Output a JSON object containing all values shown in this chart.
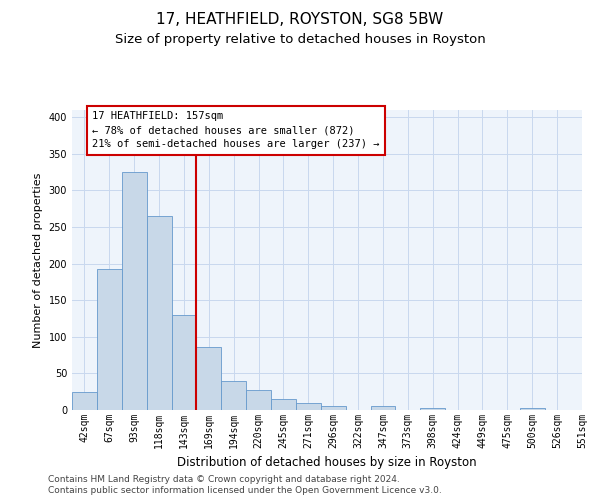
{
  "title1": "17, HEATHFIELD, ROYSTON, SG8 5BW",
  "title2": "Size of property relative to detached houses in Royston",
  "xlabel": "Distribution of detached houses by size in Royston",
  "ylabel": "Number of detached properties",
  "bar_values": [
    25,
    193,
    325,
    265,
    130,
    86,
    40,
    27,
    15,
    9,
    5,
    0,
    5,
    0,
    3,
    0,
    0,
    0,
    3
  ],
  "bin_labels": [
    "42sqm",
    "67sqm",
    "93sqm",
    "118sqm",
    "143sqm",
    "169sqm",
    "194sqm",
    "220sqm",
    "245sqm",
    "271sqm",
    "296sqm",
    "322sqm",
    "347sqm",
    "373sqm",
    "398sqm",
    "424sqm",
    "449sqm",
    "475sqm",
    "500sqm",
    "526sqm",
    "551sqm"
  ],
  "bar_color": "#c8d8e8",
  "bar_edge_color": "#6699cc",
  "vline_color": "#cc0000",
  "annotation_text": "17 HEATHFIELD: 157sqm\n← 78% of detached houses are smaller (872)\n21% of semi-detached houses are larger (237) →",
  "annotation_box_edge_color": "#cc0000",
  "ylim": [
    0,
    410
  ],
  "yticks": [
    0,
    50,
    100,
    150,
    200,
    250,
    300,
    350,
    400
  ],
  "grid_color": "#c8d8ee",
  "bg_color": "#eef4fb",
  "footer1": "Contains HM Land Registry data © Crown copyright and database right 2024.",
  "footer2": "Contains public sector information licensed under the Open Government Licence v3.0.",
  "title1_fontsize": 11,
  "title2_fontsize": 9.5,
  "xlabel_fontsize": 8.5,
  "ylabel_fontsize": 8,
  "tick_fontsize": 7,
  "annotation_fontsize": 7.5,
  "footer_fontsize": 6.5
}
